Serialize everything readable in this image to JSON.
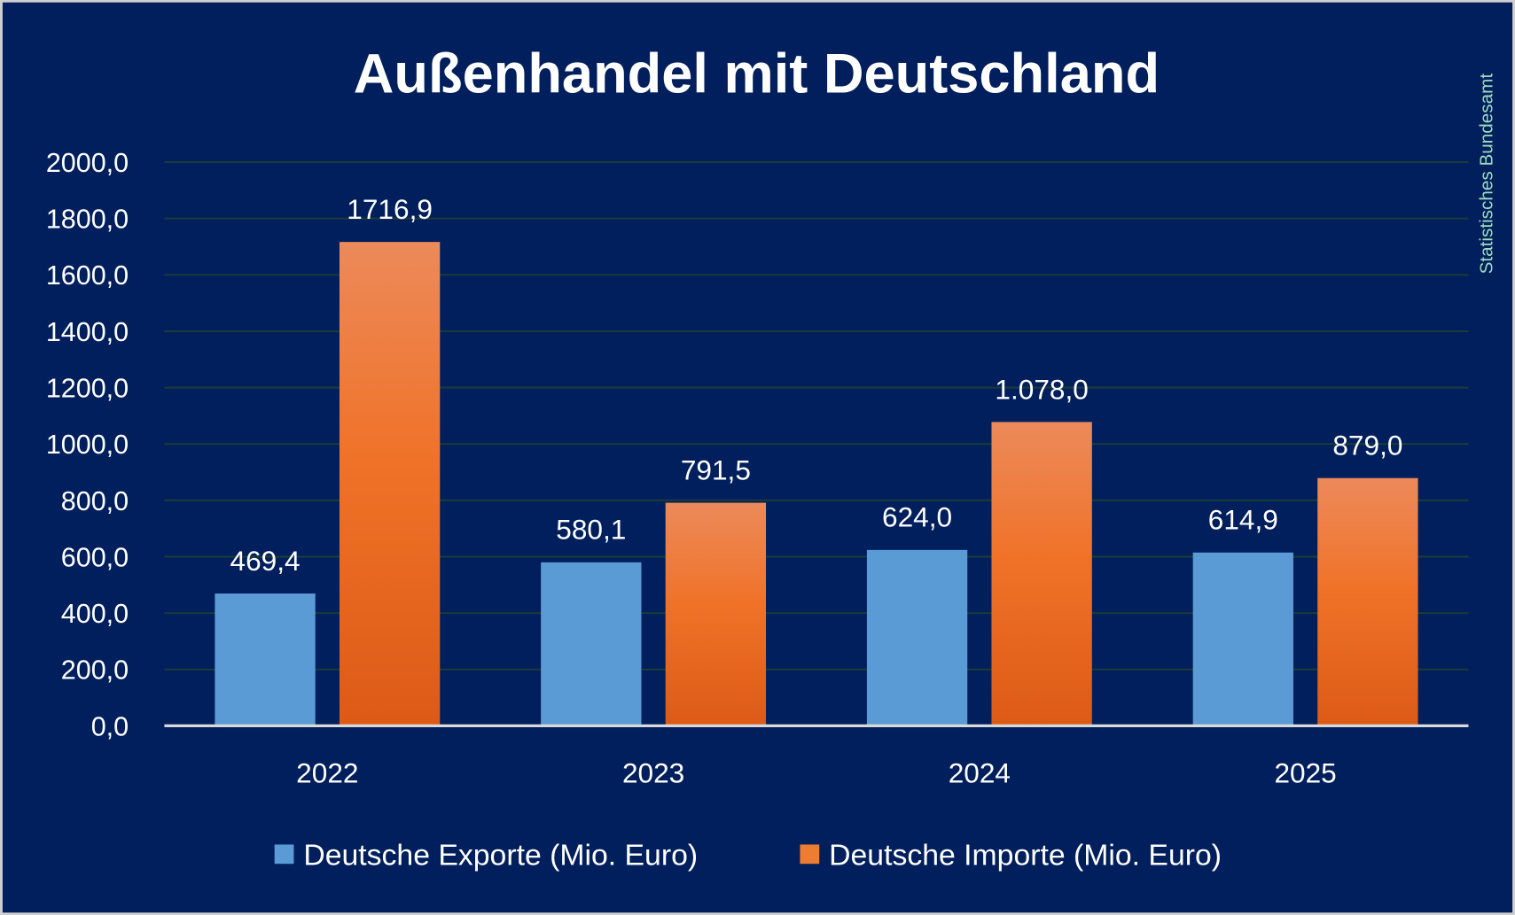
{
  "chart_data": {
    "type": "bar",
    "title": "Außenhandel mit Deutschland",
    "source_note": "Statistisches Bundesamt",
    "categories": [
      "2022",
      "2023",
      "2024",
      "2025"
    ],
    "series": [
      {
        "name": "Deutsche Exporte (Mio. Euro)",
        "values": [
          469.4,
          580.1,
          624.0,
          614.9
        ],
        "labels": [
          "469,4",
          "580,1",
          "624,0",
          "614,9"
        ],
        "color": "#5b9bd5"
      },
      {
        "name": "Deutsche Importe (Mio. Euro)",
        "values": [
          1716.9,
          791.5,
          1078.0,
          879.0
        ],
        "labels": [
          "1716,9",
          "791,5",
          "1.078,0",
          "879,0"
        ],
        "color": "#ed7d31"
      }
    ],
    "ylim": [
      0,
      2000
    ],
    "yticks": [
      "0,0",
      "200,0",
      "400,0",
      "600,0",
      "800,0",
      "1000,0",
      "1200,0",
      "1400,0",
      "1600,0",
      "1800,0",
      "2000,0"
    ],
    "grid": true,
    "legend": "bottom",
    "background": "#001f5c",
    "gridline_color": "#1a3a3a"
  }
}
